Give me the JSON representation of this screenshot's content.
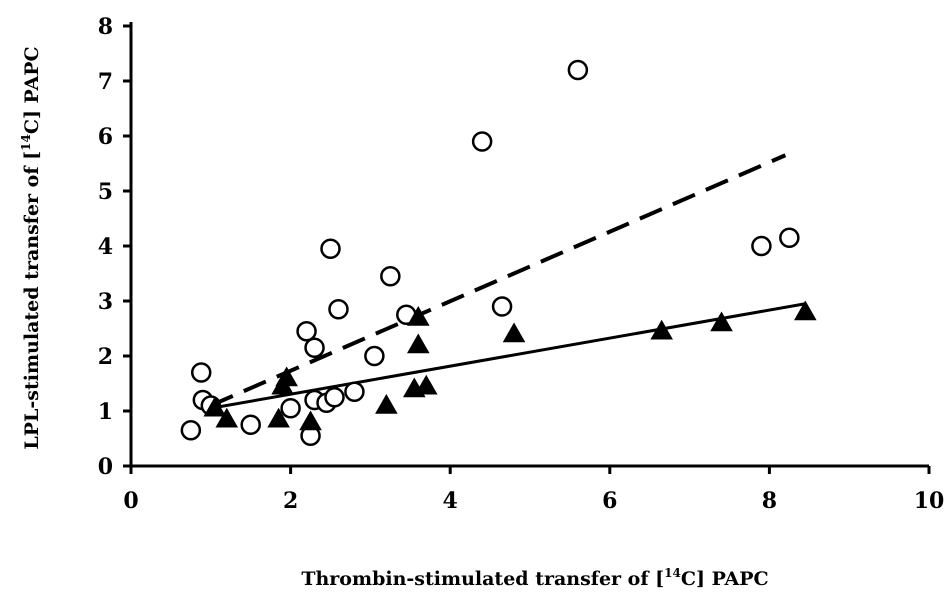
{
  "chart_data": {
    "type": "scatter",
    "title": "",
    "xlabel": {
      "prefix": "Thrombin-stimulated transfer of [",
      "superscript": "14",
      "suffix": "C] PAPC"
    },
    "ylabel": {
      "prefix": "LPL-stimulated transfer of [",
      "superscript": "14",
      "suffix": "C] PAPC"
    },
    "xlim": [
      0,
      10
    ],
    "ylim": [
      0,
      8
    ],
    "xticks": [
      0,
      2,
      4,
      6,
      8,
      10
    ],
    "yticks": [
      0,
      1,
      2,
      3,
      4,
      5,
      6,
      7,
      8
    ],
    "grid": false,
    "legend": "none",
    "series": [
      {
        "marker": "circle",
        "color": "#000000",
        "fill": "#ffffff",
        "points": [
          [
            0.75,
            0.65
          ],
          [
            0.88,
            1.7
          ],
          [
            0.9,
            1.2
          ],
          [
            1.0,
            1.1
          ],
          [
            1.5,
            0.75
          ],
          [
            2.0,
            1.05
          ],
          [
            2.2,
            2.45
          ],
          [
            2.3,
            2.15
          ],
          [
            2.25,
            0.55
          ],
          [
            2.3,
            1.2
          ],
          [
            2.45,
            1.15
          ],
          [
            2.55,
            1.25
          ],
          [
            2.5,
            3.95
          ],
          [
            2.6,
            2.85
          ],
          [
            2.8,
            1.35
          ],
          [
            3.05,
            2.0
          ],
          [
            3.25,
            3.45
          ],
          [
            3.45,
            2.75
          ],
          [
            4.4,
            5.9
          ],
          [
            4.65,
            2.9
          ],
          [
            5.6,
            7.2
          ],
          [
            7.9,
            4.0
          ],
          [
            8.25,
            4.15
          ]
        ],
        "trendline": {
          "style": "dashed",
          "x": [
            1.0,
            8.2
          ],
          "y": [
            1.1,
            5.65
          ]
        }
      },
      {
        "marker": "triangle",
        "color": "#000000",
        "fill": "#000000",
        "points": [
          [
            1.05,
            1.05
          ],
          [
            1.2,
            0.85
          ],
          [
            1.85,
            0.85
          ],
          [
            1.9,
            1.45
          ],
          [
            1.95,
            1.6
          ],
          [
            2.25,
            0.8
          ],
          [
            3.2,
            1.1
          ],
          [
            3.55,
            1.4
          ],
          [
            3.6,
            2.7
          ],
          [
            3.6,
            2.2
          ],
          [
            3.7,
            1.45
          ],
          [
            4.8,
            2.4
          ],
          [
            6.65,
            2.45
          ],
          [
            7.4,
            2.6
          ],
          [
            8.45,
            2.8
          ]
        ],
        "trendline": {
          "style": "solid",
          "x": [
            1.0,
            8.45
          ],
          "y": [
            1.05,
            2.95
          ]
        }
      }
    ]
  }
}
